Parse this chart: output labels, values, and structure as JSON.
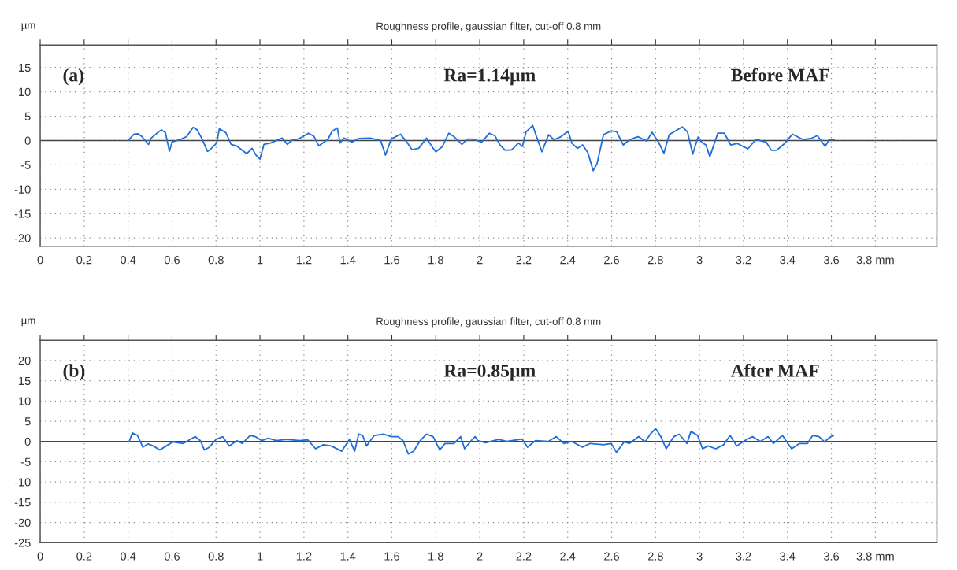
{
  "chart_data": [
    {
      "type": "line",
      "title": "Roughness profile, gaussian filter, cut-off 0.8 mm",
      "ylabel": "µm",
      "annotations": [
        "(a)",
        "Ra=1.14µm",
        "Before MAF"
      ],
      "series": [
        {
          "color": "#1f6fd6",
          "x": [
            0.4,
            0.427,
            0.445,
            0.463,
            0.493,
            0.505,
            0.534,
            0.552,
            0.57,
            0.588,
            0.6,
            0.642,
            0.666,
            0.696,
            0.714,
            0.737,
            0.761,
            0.773,
            0.803,
            0.815,
            0.845,
            0.869,
            0.893,
            0.917,
            0.94,
            0.964,
            0.982,
            1.0,
            1.018,
            1.048,
            1.101,
            1.125,
            1.143,
            1.179,
            1.221,
            1.245,
            1.268,
            1.286,
            1.31,
            1.328,
            1.352,
            1.364,
            1.382,
            1.418,
            1.448,
            1.501,
            1.549,
            1.571,
            1.597,
            1.639,
            1.668,
            1.692,
            1.722,
            1.758,
            1.788,
            1.8,
            1.829,
            1.859,
            1.883,
            1.919,
            1.943,
            1.967,
            2.009,
            2.044,
            2.068,
            2.092,
            2.116,
            2.146,
            2.176,
            2.194,
            2.211,
            2.241,
            2.259,
            2.283,
            2.313,
            2.337,
            2.366,
            2.402,
            2.42,
            2.444,
            2.468,
            2.492,
            2.516,
            2.534,
            2.563,
            2.599,
            2.623,
            2.653,
            2.683,
            2.719,
            2.76,
            2.784,
            2.814,
            2.838,
            2.862,
            2.921,
            2.945,
            2.969,
            2.993,
            3.011,
            3.029,
            3.047,
            3.083,
            3.113,
            3.142,
            3.172,
            3.22,
            3.256,
            3.303,
            3.327,
            3.351,
            3.387,
            3.423,
            3.471,
            3.506,
            3.536,
            3.572,
            3.59,
            3.613
          ],
          "values": [
            0,
            1.3,
            1.4,
            0.8,
            -0.8,
            0.5,
            1.6,
            2.2,
            1.6,
            -2.2,
            -0.3,
            0.3,
            0.8,
            2.7,
            2.2,
            0.3,
            -2.2,
            -1.9,
            -0.5,
            2.4,
            1.6,
            -0.8,
            -1.1,
            -1.9,
            -2.7,
            -1.6,
            -3.0,
            -3.8,
            -0.8,
            -0.5,
            0.5,
            -0.8,
            0,
            0.4,
            1.5,
            0.9,
            -1.1,
            -0.5,
            0.3,
            1.9,
            2.6,
            -0.5,
            0.5,
            -0.3,
            0.4,
            0.5,
            0,
            -3.0,
            0.3,
            1.3,
            -0.3,
            -1.9,
            -1.6,
            0.5,
            -1.6,
            -2.3,
            -1.3,
            1.5,
            0.8,
            -0.8,
            0.3,
            0.3,
            -0.3,
            1.5,
            1.0,
            -0.9,
            -2.0,
            -1.9,
            -0.5,
            -1.2,
            1.8,
            3.1,
            0.7,
            -2.3,
            1.2,
            0.2,
            0.7,
            1.9,
            -0.6,
            -1.6,
            -0.9,
            -2.5,
            -6.2,
            -4.7,
            1.2,
            2.0,
            1.8,
            -0.9,
            0.2,
            0.8,
            -0.1,
            1.7,
            -0.4,
            -2.6,
            1.2,
            2.8,
            1.8,
            -2.8,
            0.7,
            -0.4,
            -0.9,
            -3.3,
            1.5,
            1.5,
            -0.9,
            -0.6,
            -1.7,
            0.2,
            -0.3,
            -2.0,
            -2.0,
            -0.6,
            1.3,
            0.2,
            0.4,
            1.0,
            -1.2,
            0.2,
            0.2
          ]
        }
      ],
      "xlim": [
        0,
        4.08
      ],
      "ylim": [
        -21.7,
        19.6
      ],
      "xticks": [
        0,
        0.2,
        0.4,
        0.6,
        0.8,
        1,
        1.2,
        1.4,
        1.6,
        1.8,
        2,
        2.2,
        2.4,
        2.6,
        2.8,
        3,
        3.2,
        3.4,
        3.6,
        {
          "value": 3.8,
          "label": "3.8 mm"
        }
      ],
      "yticks": [
        -20,
        -15,
        -10,
        -5,
        0,
        5,
        10,
        15
      ],
      "grid": true,
      "line_style": "solid",
      "ref_lines": [
        {
          "axis": "y",
          "value": 0,
          "color": "#444444"
        }
      ]
    },
    {
      "type": "line",
      "title": "Roughness profile, gaussian filter, cut-off 0.8 mm",
      "ylabel": "µm",
      "annotations": [
        "(b)",
        "Ra=0.85µm",
        "After MAF"
      ],
      "series": [
        {
          "color": "#1f6fd6",
          "x": [
            0.405,
            0.419,
            0.443,
            0.467,
            0.491,
            0.514,
            0.544,
            0.574,
            0.604,
            0.651,
            0.705,
            0.729,
            0.747,
            0.77,
            0.8,
            0.83,
            0.86,
            0.895,
            0.919,
            0.955,
            0.979,
            1.008,
            1.038,
            1.074,
            1.121,
            1.181,
            1.217,
            1.253,
            1.288,
            1.324,
            1.372,
            1.407,
            1.431,
            1.449,
            1.467,
            1.485,
            1.52,
            1.562,
            1.598,
            1.628,
            1.651,
            1.675,
            1.699,
            1.729,
            1.758,
            1.788,
            1.818,
            1.842,
            1.883,
            1.913,
            1.931,
            1.961,
            1.979,
            1.991,
            2.026,
            2.086,
            2.122,
            2.193,
            2.217,
            2.253,
            2.312,
            2.348,
            2.383,
            2.419,
            2.467,
            2.502,
            2.562,
            2.598,
            2.622,
            2.657,
            2.681,
            2.723,
            2.752,
            2.776,
            2.8,
            2.824,
            2.848,
            2.883,
            2.907,
            2.943,
            2.961,
            2.991,
            3.014,
            3.038,
            3.074,
            3.11,
            3.139,
            3.169,
            3.205,
            3.241,
            3.276,
            3.312,
            3.336,
            3.377,
            3.419,
            3.455,
            3.491,
            3.515,
            3.544,
            3.568,
            3.598,
            3.61
          ],
          "values": [
            0,
            2.1,
            1.5,
            -1.4,
            -0.6,
            -1.1,
            -2.1,
            -1.1,
            -0.1,
            -0.5,
            1.2,
            0.2,
            -2.1,
            -1.4,
            0.5,
            1.2,
            -1.1,
            0.2,
            -0.5,
            1.5,
            1.2,
            0.2,
            0.8,
            0.2,
            0.5,
            0.2,
            0.4,
            -1.8,
            -0.8,
            -1.1,
            -2.4,
            0.5,
            -2.4,
            1.8,
            1.5,
            -1.1,
            1.5,
            1.8,
            1.2,
            1.2,
            0.2,
            -3.1,
            -2.4,
            0.2,
            1.8,
            1.2,
            -2.1,
            -0.5,
            -0.5,
            1.2,
            -1.8,
            0.2,
            1.2,
            0.2,
            -0.3,
            0.5,
            0,
            0.6,
            -1.4,
            0.2,
            0,
            1.2,
            -0.5,
            0,
            -1.4,
            -0.5,
            -0.8,
            -0.5,
            -2.7,
            -0.1,
            -0.5,
            1.2,
            -0.1,
            1.8,
            3.2,
            1.2,
            -1.8,
            1.2,
            1.8,
            -0.5,
            2.5,
            1.5,
            -1.8,
            -1.1,
            -1.8,
            -0.8,
            1.5,
            -1.1,
            0.2,
            1.2,
            0,
            1.2,
            -0.5,
            1.5,
            -1.8,
            -0.5,
            -0.5,
            1.5,
            1.2,
            -0.1,
            1.2,
            1.5
          ]
        }
      ],
      "xlim": [
        0,
        4.08
      ],
      "ylim": [
        -25,
        25
      ],
      "xticks": [
        0,
        0.2,
        0.4,
        0.6,
        0.8,
        1,
        1.2,
        1.4,
        1.6,
        1.8,
        2,
        2.2,
        2.4,
        2.6,
        2.8,
        3,
        3.2,
        3.4,
        3.6,
        {
          "value": 3.8,
          "label": "3.8 mm"
        }
      ],
      "yticks": [
        -25,
        -20,
        -15,
        -10,
        -5,
        0,
        5,
        10,
        15,
        20
      ],
      "grid": true,
      "line_style": "solid",
      "ref_lines": [
        {
          "axis": "y",
          "value": 0,
          "color": "#444444"
        }
      ]
    }
  ]
}
